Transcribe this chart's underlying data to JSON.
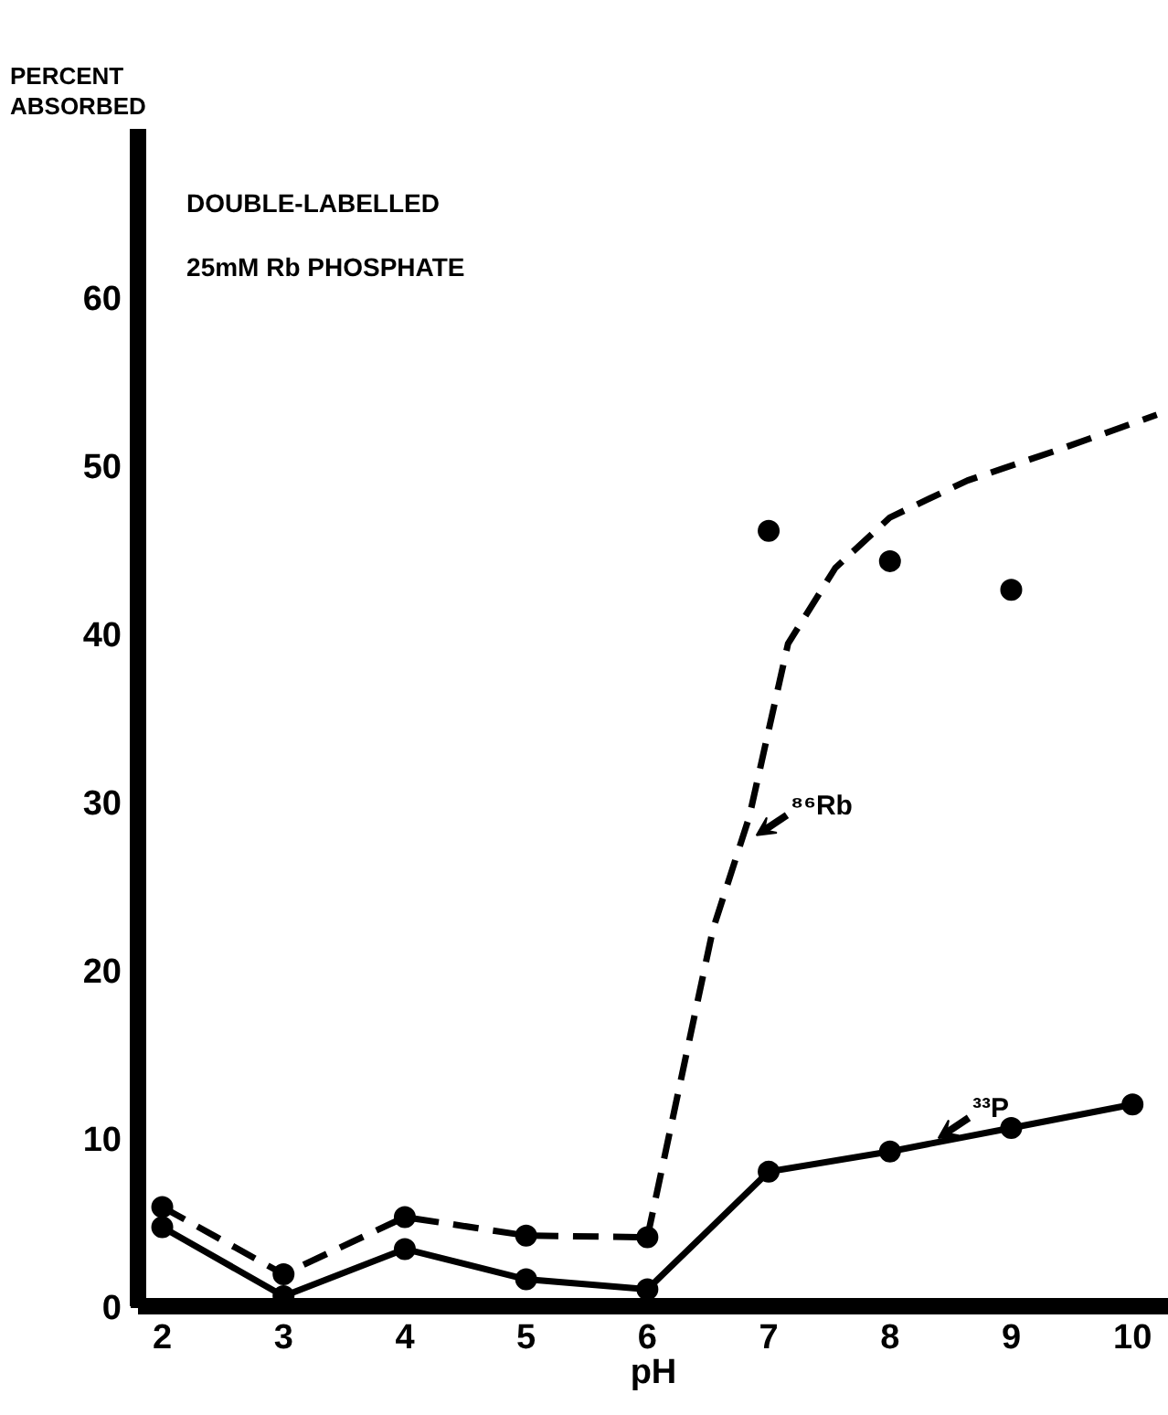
{
  "chart_data": {
    "type": "line",
    "title": "DOUBLE-LABELLED",
    "subtitle": "25mM Rb PHOSPHATE",
    "xlabel": "pH",
    "ylabel": "PERCENT ABSORBED",
    "x": [
      2,
      3,
      4,
      5,
      6,
      7,
      8,
      9,
      10
    ],
    "series": [
      {
        "color": "#000000",
        "line_style": "solid",
        "marker": "circle",
        "values": [
          4.7,
          0.6,
          3.4,
          1.6,
          1.0,
          8.0,
          9.2,
          10.6,
          12.0
        ]
      },
      {
        "color": "#000000",
        "line_style": "dashed",
        "marker": "circle",
        "x": [
          2,
          3,
          4,
          5,
          6
        ],
        "values": [
          5.9,
          1.9,
          5.3,
          4.2,
          4.1
        ]
      },
      {
        "color": "#000000",
        "line_style": "dashed",
        "marker": "none",
        "x": [
          6,
          6.54,
          6.84,
          7.16,
          7.55,
          8.0,
          8.64,
          9.38,
          10.2
        ],
        "values": [
          4.1,
          22.4,
          29.1,
          39.4,
          43.9,
          46.9,
          49.1,
          50.9,
          53.0
        ]
      },
      {
        "type": "scatter",
        "color": "#000000",
        "marker": "circle",
        "x": [
          7,
          8,
          9
        ],
        "values": [
          46.1,
          44.3,
          42.6
        ]
      }
    ],
    "annotations": [
      {
        "text": "⁸⁶Rb",
        "x": 6.85,
        "y": 28
      },
      {
        "text": "³³P",
        "x": 8.35,
        "y": 10
      }
    ],
    "xlim": [
      1.8,
      10.3
    ],
    "ylim": [
      0,
      70
    ],
    "xticks": [
      2,
      3,
      4,
      5,
      6,
      7,
      8,
      9,
      10
    ],
    "yticks": [
      0,
      10,
      20,
      30,
      40,
      50,
      60
    ],
    "grid": false
  }
}
